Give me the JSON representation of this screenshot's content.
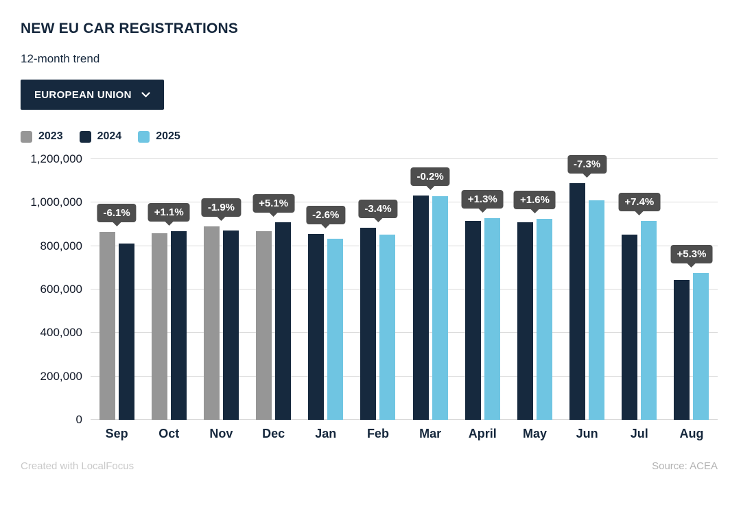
{
  "header": {
    "title": "NEW EU CAR REGISTRATIONS",
    "subtitle": "12-month trend",
    "region_selector": {
      "label": "EUROPEAN UNION"
    }
  },
  "legend": [
    {
      "label": "2023",
      "color": "#969696"
    },
    {
      "label": "2024",
      "color": "#16293e"
    },
    {
      "label": "2025",
      "color": "#6fc5e2"
    }
  ],
  "colors": {
    "navy": "#16293e",
    "gray": "#969696",
    "light_blue": "#6fc5e2",
    "badge": "#4e4e4e"
  },
  "chart_data": {
    "type": "bar",
    "title": "NEW EU CAR REGISTRATIONS",
    "subtitle": "12-month trend",
    "categories": [
      "Sep",
      "Oct",
      "Nov",
      "Dec",
      "Jan",
      "Feb",
      "Mar",
      "April",
      "May",
      "Jun",
      "Jul",
      "Aug"
    ],
    "series": [
      {
        "name": "2023",
        "color": "#969696",
        "values": [
          865000,
          860000,
          890000,
          867000,
          null,
          null,
          null,
          null,
          null,
          null,
          null,
          null
        ]
      },
      {
        "name": "2024",
        "color": "#16293e",
        "values": [
          812000,
          869000,
          873000,
          911000,
          855000,
          883000,
          1032000,
          916000,
          911000,
          1089000,
          852000,
          643000
        ]
      },
      {
        "name": "2025",
        "color": "#6fc5e2",
        "values": [
          null,
          null,
          null,
          null,
          833000,
          853000,
          1030000,
          928000,
          926000,
          1010000,
          915000,
          677000
        ]
      }
    ],
    "change_labels": [
      "-6.1%",
      "+1.1%",
      "-1.9%",
      "+5.1%",
      "-2.6%",
      "-3.4%",
      "-0.2%",
      "+1.3%",
      "+1.6%",
      "-7.3%",
      "+7.4%",
      "+5.3%"
    ],
    "ylim": [
      0,
      1200000
    ],
    "ytick_step": 200000,
    "ytick_labels": [
      "0",
      "200,000",
      "400,000",
      "600,000",
      "800,000",
      "1,000,000",
      "1,200,000"
    ],
    "grid": true,
    "legend_position": "top",
    "xlabel": "",
    "ylabel": ""
  },
  "footer": {
    "left": "Created with LocalFocus",
    "right": "Source:  ACEA"
  }
}
